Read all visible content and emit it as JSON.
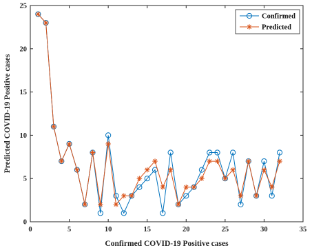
{
  "chart_data": {
    "type": "line",
    "xlabel": "Confirmed COVID-19 Positive cases",
    "ylabel": "Predicted COVID-19 Positive cases",
    "xlim": [
      0,
      35
    ],
    "ylim": [
      0,
      25
    ],
    "xticks": [
      0,
      5,
      10,
      15,
      20,
      25,
      30,
      35
    ],
    "yticks": [
      0,
      5,
      10,
      15,
      20,
      25
    ],
    "grid": false,
    "legend_position": "top-right",
    "x": [
      1,
      2,
      3,
      4,
      5,
      6,
      7,
      8,
      9,
      10,
      11,
      12,
      13,
      14,
      15,
      16,
      17,
      18,
      19,
      20,
      21,
      22,
      23,
      24,
      25,
      26,
      27,
      28,
      29,
      30,
      31,
      32
    ],
    "series": [
      {
        "name": "Confirmed",
        "marker": "circle",
        "color": "#0072BD",
        "values": [
          24,
          23,
          11,
          7,
          9,
          6,
          2,
          8,
          1,
          10,
          3,
          1,
          3,
          4,
          5,
          6,
          1,
          8,
          2,
          3,
          4,
          6,
          8,
          8,
          5,
          8,
          2,
          7,
          3,
          7,
          3,
          8
        ]
      },
      {
        "name": "Predicted",
        "marker": "asterisk",
        "color": "#D95319",
        "values": [
          24,
          23,
          11,
          7,
          9,
          6,
          2,
          8,
          2,
          9,
          2,
          3,
          3,
          5,
          6,
          7,
          4,
          6,
          2,
          4,
          4,
          5,
          7,
          7,
          5,
          6,
          3,
          7,
          3,
          6,
          4,
          7
        ]
      }
    ]
  }
}
